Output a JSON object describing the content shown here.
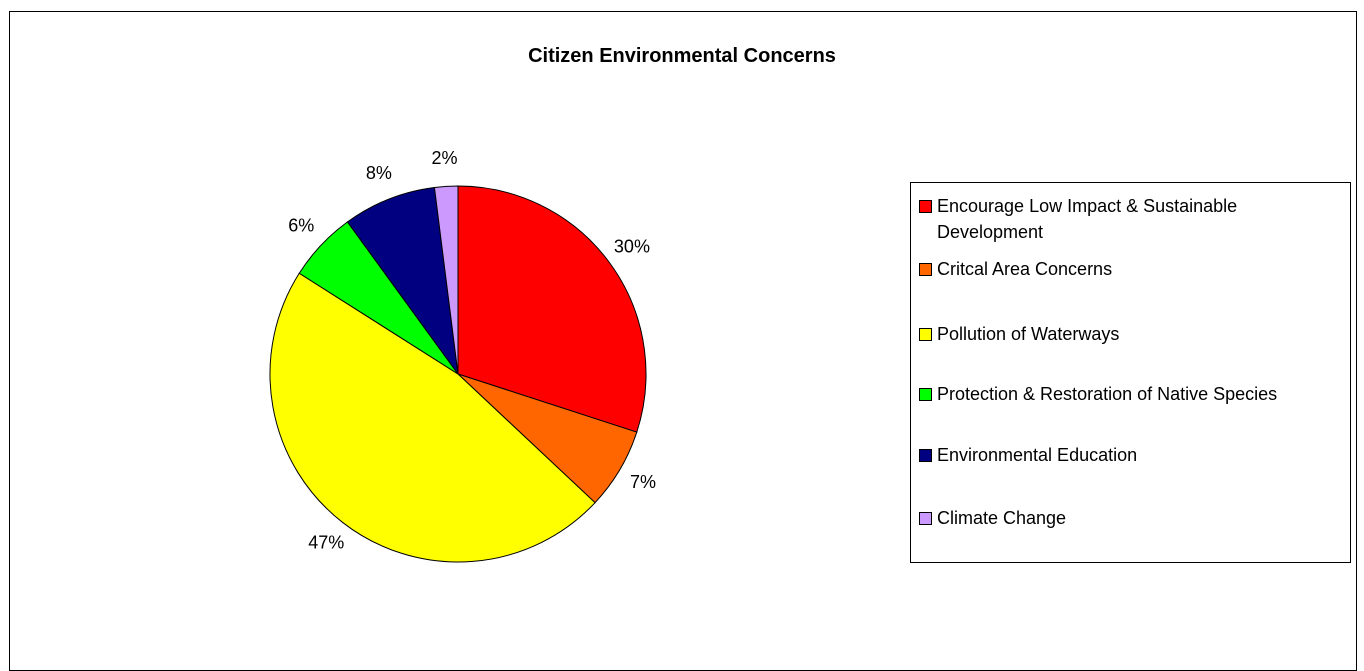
{
  "chart_data": {
    "type": "pie",
    "title": "Citizen Environmental Concerns",
    "legend_position": "right",
    "slices": [
      {
        "label": "Encourage Low Impact & Sustainable Development",
        "value": 30,
        "display": "30%",
        "color": "#FF0000"
      },
      {
        "label": "Critcal Area Concerns",
        "value": 7,
        "display": "7%",
        "color": "#FF6600"
      },
      {
        "label": "Pollution of Waterways",
        "value": 47,
        "display": "47%",
        "color": "#FFFF00"
      },
      {
        "label": "Protection & Restoration of Native Species",
        "value": 6,
        "display": "6%",
        "color": "#00FF00"
      },
      {
        "label": "Environmental Education",
        "value": 8,
        "display": "8%",
        "color": "#000080"
      },
      {
        "label": "Climate Change",
        "value": 2,
        "display": "2%",
        "color": "#CC99FF"
      }
    ]
  }
}
